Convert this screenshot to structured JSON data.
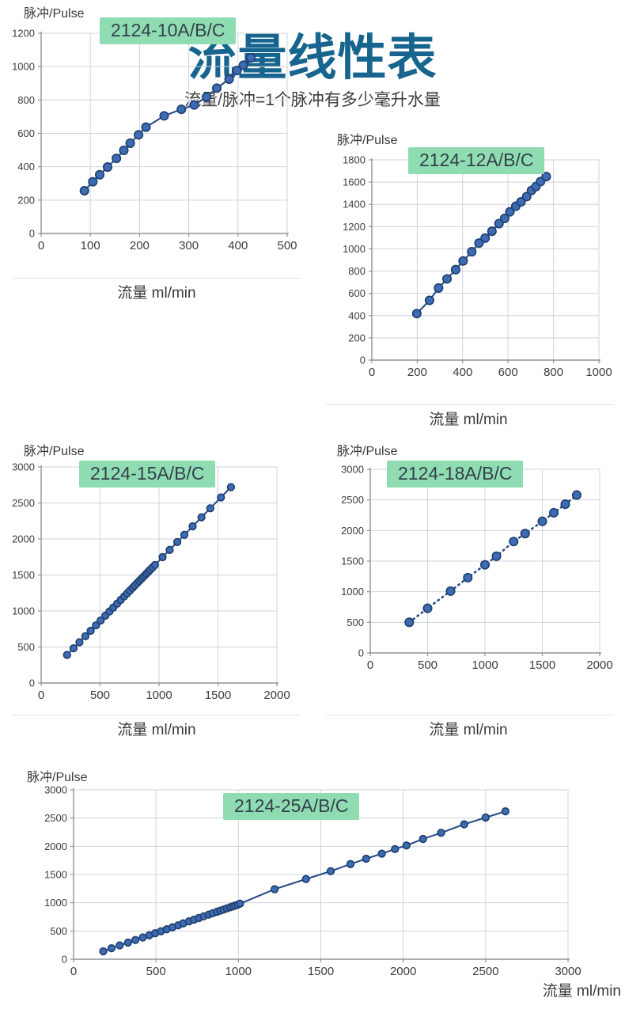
{
  "header": {
    "title": "流量线性表",
    "subtitle": "流量/脉冲=1个脉冲有多少毫升水量"
  },
  "colors": {
    "title": "#17658f",
    "badge_bg": "#90dcb2",
    "badge_text": "#33414b",
    "grid": "#cfd3da",
    "axis": "#8d939c",
    "tick_text": "#3c3c3c",
    "line": "#2b4d8c",
    "marker_fill": "#3e6cb4",
    "marker_stroke": "#20406f"
  },
  "chart_data": [
    {
      "type": "line",
      "title": "2124-10A/B/C",
      "ylabel": "脉冲/Pulse",
      "xlabel": "流量 ml/min",
      "line_style": "solid",
      "grid": true,
      "xlim": [
        0,
        500
      ],
      "ylim": [
        0,
        1200
      ],
      "xticks": [
        0,
        100,
        200,
        300,
        400,
        500
      ],
      "yticks": [
        0,
        200,
        400,
        600,
        800,
        1000,
        1200
      ],
      "x": [
        88,
        105,
        119,
        135,
        153,
        168,
        181,
        198,
        213,
        250,
        285,
        311,
        336,
        357,
        382,
        398,
        411,
        426
      ],
      "y": [
        256,
        310,
        352,
        398,
        450,
        498,
        541,
        591,
        637,
        705,
        744,
        770,
        818,
        871,
        925,
        977,
        1008,
        1053
      ]
    },
    {
      "type": "line",
      "title": "2124-12A/B/C",
      "ylabel": "脉冲/Pulse",
      "xlabel": "流量 ml/min",
      "line_style": "solid",
      "grid": true,
      "xlim": [
        0,
        1000
      ],
      "ylim": [
        0,
        1800
      ],
      "xticks": [
        0,
        200,
        400,
        600,
        800,
        1000
      ],
      "yticks": [
        0,
        200,
        400,
        600,
        800,
        1000,
        1200,
        1400,
        1600,
        1800
      ],
      "x": [
        198,
        254,
        294,
        331,
        369,
        402,
        440,
        472,
        499,
        529,
        560,
        585,
        608,
        634,
        657,
        682,
        703,
        723,
        743,
        768
      ],
      "y": [
        418,
        537,
        648,
        730,
        813,
        891,
        974,
        1052,
        1097,
        1158,
        1227,
        1274,
        1333,
        1383,
        1423,
        1470,
        1525,
        1560,
        1605,
        1650
      ]
    },
    {
      "type": "line",
      "title": "2124-15A/B/C",
      "ylabel": "脉冲/Pulse",
      "xlabel": "流量 ml/min",
      "line_style": "solid",
      "grid": true,
      "xlim": [
        0,
        2000
      ],
      "ylim": [
        0,
        3000
      ],
      "xticks": [
        0,
        500,
        1000,
        1500,
        2000
      ],
      "yticks": [
        0,
        500,
        1000,
        1500,
        2000,
        2500,
        3000
      ],
      "x": [
        220,
        275,
        325,
        375,
        420,
        465,
        505,
        545,
        580,
        612,
        645,
        675,
        705,
        730,
        752,
        775,
        795,
        815,
        832,
        850,
        865,
        880,
        895,
        910,
        925,
        945,
        965,
        1030,
        1090,
        1155,
        1215,
        1285,
        1360,
        1435,
        1525,
        1610
      ],
      "y": [
        390,
        482,
        566,
        650,
        725,
        801,
        868,
        935,
        993,
        1047,
        1102,
        1153,
        1203,
        1245,
        1282,
        1320,
        1354,
        1387,
        1416,
        1446,
        1471,
        1496,
        1521,
        1546,
        1572,
        1605,
        1639,
        1748,
        1848,
        1957,
        2058,
        2175,
        2301,
        2426,
        2577,
        2720
      ]
    },
    {
      "type": "line",
      "title": "2124-18A/B/C",
      "ylabel": "脉冲/Pulse",
      "xlabel": "流量 ml/min",
      "line_style": "dotted",
      "grid": true,
      "xlim": [
        0,
        2000
      ],
      "ylim": [
        0,
        3000
      ],
      "xticks": [
        0,
        500,
        1000,
        1500,
        2000
      ],
      "yticks": [
        0,
        500,
        1000,
        1500,
        2000,
        2500,
        3000
      ],
      "x": [
        340,
        500,
        700,
        850,
        1000,
        1100,
        1250,
        1350,
        1500,
        1600,
        1700,
        1800
      ],
      "y": [
        500,
        730,
        1010,
        1230,
        1440,
        1580,
        1820,
        1950,
        2150,
        2290,
        2430,
        2580
      ]
    },
    {
      "type": "line",
      "title": "2124-25A/B/C",
      "ylabel": "脉冲/Pulse",
      "xlabel": "流量 ml/min",
      "line_style": "solid",
      "grid": true,
      "xlim": [
        0,
        3000
      ],
      "ylim": [
        0,
        3000
      ],
      "xticks": [
        0,
        500,
        1000,
        1500,
        2000,
        2500,
        3000
      ],
      "yticks": [
        0,
        500,
        1000,
        1500,
        2000,
        2500,
        3000
      ],
      "x": [
        180,
        230,
        280,
        330,
        375,
        420,
        460,
        495,
        530,
        565,
        600,
        635,
        665,
        700,
        730,
        760,
        790,
        820,
        845,
        870,
        890,
        910,
        930,
        950,
        965,
        980,
        995,
        1010,
        1220,
        1410,
        1560,
        1680,
        1775,
        1870,
        1950,
        2020,
        2120,
        2230,
        2370,
        2500,
        2620
      ],
      "y": [
        140,
        195,
        245,
        295,
        340,
        385,
        425,
        460,
        495,
        530,
        565,
        600,
        635,
        670,
        700,
        730,
        760,
        790,
        815,
        840,
        860,
        880,
        900,
        920,
        935,
        950,
        965,
        985,
        1240,
        1420,
        1560,
        1685,
        1780,
        1870,
        1950,
        2015,
        2130,
        2240,
        2390,
        2510,
        2620
      ]
    }
  ]
}
